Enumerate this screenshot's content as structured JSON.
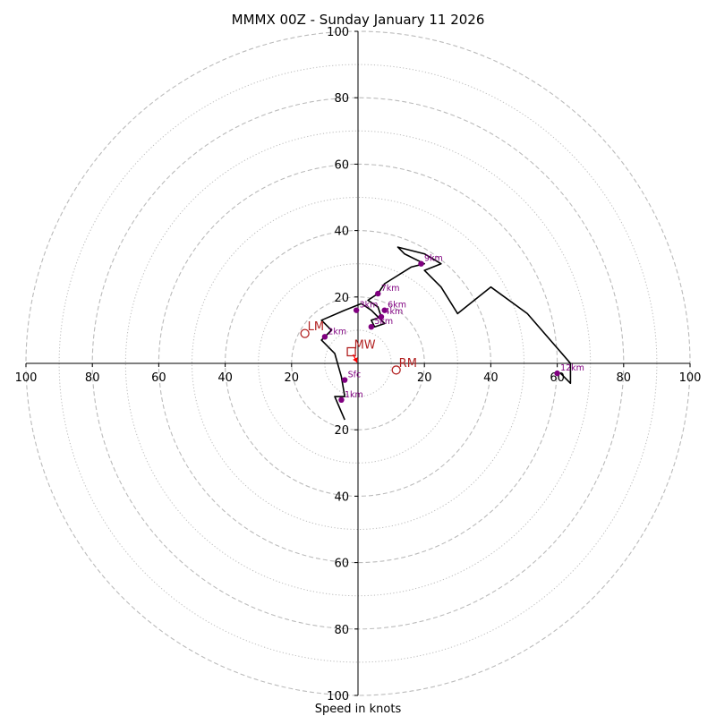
{
  "chart_data": {
    "type": "hodograph",
    "title": "MMMX 00Z - Sunday January 11 2026",
    "xlabel": "Speed in knots",
    "ylabel": "",
    "range": [
      -100,
      100
    ],
    "ring_major": [
      20,
      40,
      60,
      80,
      100
    ],
    "ring_minor": [
      10,
      30,
      50,
      70,
      90
    ],
    "x_tick_labels": [
      "100",
      "80",
      "60",
      "40",
      "20",
      "20",
      "40",
      "60",
      "80",
      "100"
    ],
    "y_tick_labels": [
      "100",
      "80",
      "60",
      "40",
      "20",
      "20",
      "40",
      "60",
      "80",
      "100"
    ],
    "trace": [
      [
        -4,
        -17
      ],
      [
        -7,
        -10
      ],
      [
        -4,
        -10
      ],
      [
        -5,
        -4
      ],
      [
        -7,
        3
      ],
      [
        -11,
        7
      ],
      [
        -8,
        10
      ],
      [
        -11,
        13
      ],
      [
        -4,
        16
      ],
      [
        1,
        18
      ],
      [
        4,
        16
      ],
      [
        8,
        12
      ],
      [
        5,
        11
      ],
      [
        4,
        13
      ],
      [
        7,
        14
      ],
      [
        6,
        17
      ],
      [
        3,
        19
      ],
      [
        6,
        21
      ],
      [
        8,
        24
      ],
      [
        16,
        29
      ],
      [
        20,
        30
      ],
      [
        14,
        33
      ],
      [
        12,
        35
      ],
      [
        20,
        33
      ],
      [
        25,
        30
      ],
      [
        20,
        28
      ],
      [
        25,
        23
      ],
      [
        30,
        15
      ],
      [
        35,
        19
      ],
      [
        40,
        23
      ],
      [
        51,
        15
      ],
      [
        64,
        0
      ],
      [
        64,
        -6
      ],
      [
        61,
        -3
      ]
    ],
    "height_markers": [
      {
        "label": "Sfc",
        "u": -4,
        "v": -5
      },
      {
        "label": "1km",
        "u": -5,
        "v": -11
      },
      {
        "label": "2km",
        "u": -10,
        "v": 8
      },
      {
        "label": "3km",
        "u": -0.5,
        "v": 16
      },
      {
        "label": "4km",
        "u": 7,
        "v": 14
      },
      {
        "label": "5km",
        "u": 4,
        "v": 11
      },
      {
        "label": "6km",
        "u": 8,
        "v": 16
      },
      {
        "label": "7km",
        "u": 6,
        "v": 21
      },
      {
        "label": "9km",
        "u": 19,
        "v": 30
      },
      {
        "label": "12km",
        "u": 60,
        "v": -3
      }
    ],
    "storm_motion": [
      {
        "label": "LM",
        "u": -16,
        "v": 9,
        "marker": "circle"
      },
      {
        "label": "RM",
        "u": 11.5,
        "v": -2,
        "marker": "circle"
      },
      {
        "label": "MW",
        "u": -2,
        "v": 3.5,
        "marker": "square"
      }
    ],
    "colors": {
      "trace": "#000000",
      "height_marker": "#800080",
      "storm_motion": "#b22222",
      "motion_arrow": "#ff0000",
      "ring": "#bbbbbb",
      "axis": "#000000"
    }
  }
}
